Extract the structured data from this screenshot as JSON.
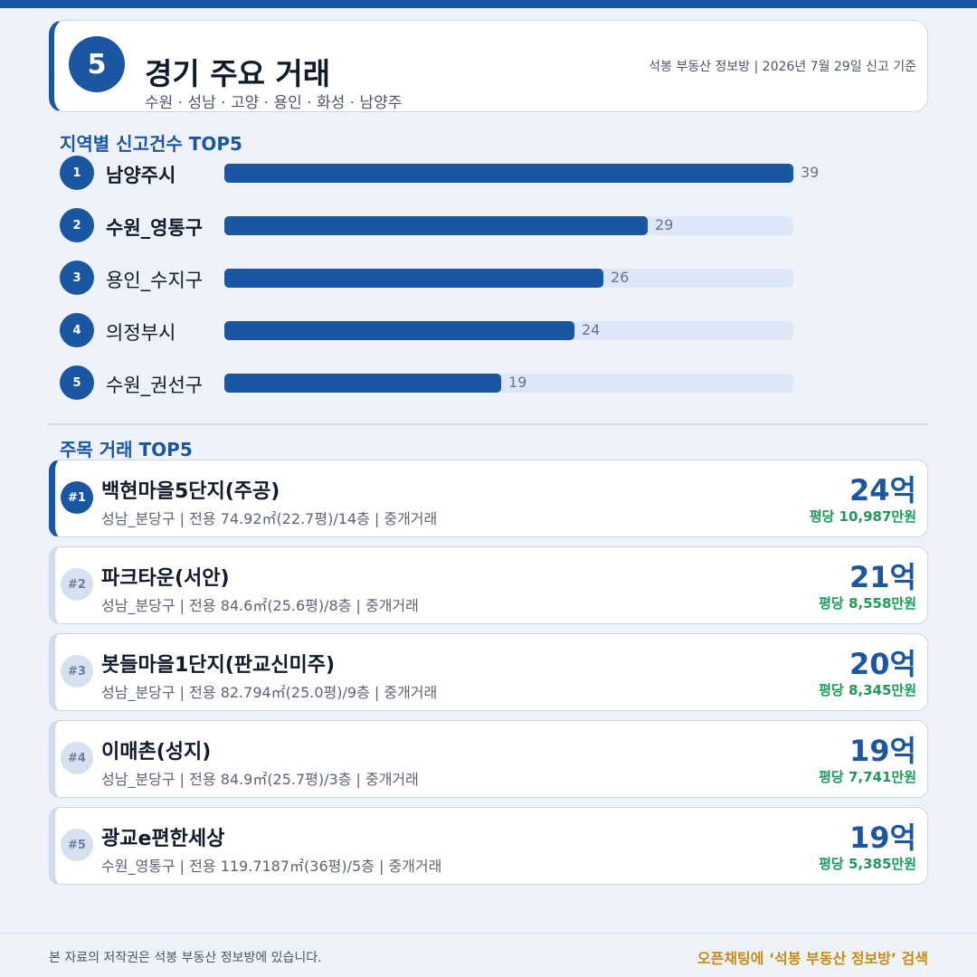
{
  "header": {
    "page_number": "5",
    "title": "경기 주요 거래",
    "subtitle": "수원 · 성남 · 고양 · 용인 · 화성 · 남양주",
    "source": "석봉 부동산 정보방 | 2026년 7월 29일 신고 기준"
  },
  "ranking": {
    "title": "지역별 신고건수 TOP5",
    "max": 39,
    "items": [
      {
        "rank": "1",
        "name": "남양주시",
        "value": 39
      },
      {
        "rank": "2",
        "name": "수원_영통구",
        "value": 29
      },
      {
        "rank": "3",
        "name": "용인_수지구",
        "value": 26
      },
      {
        "rank": "4",
        "name": "의정부시",
        "value": 24
      },
      {
        "rank": "5",
        "name": "수원_권선구",
        "value": 19
      }
    ]
  },
  "deals": {
    "title": "주목 거래 TOP5",
    "items": [
      {
        "rank": "#1",
        "name": "백현마을5단지(주공)",
        "info": "성남_분당구 | 전용 74.92㎡(22.7평)/14층 | 중개거래",
        "price": "24억",
        "per_pyeong": "평당 10,987만원"
      },
      {
        "rank": "#2",
        "name": "파크타운(서안)",
        "info": "성남_분당구 | 전용 84.6㎡(25.6평)/8층 | 중개거래",
        "price": "21억",
        "per_pyeong": "평당 8,558만원"
      },
      {
        "rank": "#3",
        "name": "봇들마을1단지(판교신미주)",
        "info": "성남_분당구 | 전용 82.794㎡(25.0평)/9층 | 중개거래",
        "price": "20억",
        "per_pyeong": "평당 8,345만원"
      },
      {
        "rank": "#4",
        "name": "이매촌(성지)",
        "info": "성남_분당구 | 전용 84.9㎡(25.7평)/3층 | 중개거래",
        "price": "19억",
        "per_pyeong": "평당 7,741만원"
      },
      {
        "rank": "#5",
        "name": "광교e편한세상",
        "info": "수원_영통구 | 전용 119.7187㎡(36평)/5층 | 중개거래",
        "price": "19억",
        "per_pyeong": "평당 5,385만원"
      }
    ]
  },
  "footer": {
    "copyright": "본 자료의 저작권은 석봉 부동산 정보방에 있습니다.",
    "cta": "오픈채팅에 ‘석봉 부동산 정보방’ 검색"
  },
  "colors": {
    "primary": "#1b56a3",
    "accent_green": "#1e9a5a",
    "accent_gold": "#c98a12",
    "background": "#eef3fb"
  }
}
